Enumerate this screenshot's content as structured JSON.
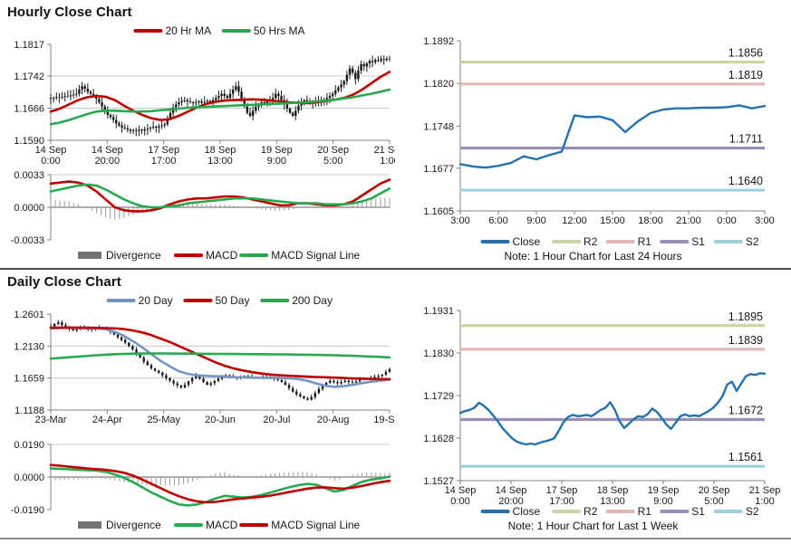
{
  "sections": [
    {
      "title": "Hourly Close Chart",
      "note": "Note: 1 Hour Chart for Last 24 Hours"
    },
    {
      "title": "Daily Close Chart",
      "note": "Note: 1 Hour Chart for Last 1 Week"
    }
  ],
  "colors": {
    "dark_red": "#c00000",
    "green": "#28a94f",
    "steel_blue": "#7494c4",
    "close_blue": "#2471b0",
    "r2_olive": "#c6d69e",
    "r1_pink": "#e2b7b5",
    "s1_purple": "#9c8db8",
    "s2_lightblue": "#9ccedc",
    "divergence_gray": "#8c8c8c",
    "candle_black": "#1a1a1a",
    "axis_gray": "#808080",
    "grid_gray": "#c8c8c8"
  },
  "chart_data": [
    {
      "id": "hourly_price",
      "type": "candlestick",
      "ylim": [
        1.159,
        1.1817
      ],
      "yticks": [
        1.1817,
        1.1742,
        1.1666,
        1.159
      ],
      "ytick_labels": [
        "1.1817",
        "1.1742",
        "1.1666",
        "1.1590"
      ],
      "xticks": [
        [
          "14 Sep",
          "0:00"
        ],
        [
          "14 Sep",
          "20:00"
        ],
        [
          "17 Sep",
          "17:00"
        ],
        [
          "18 Sep",
          "13:00"
        ],
        [
          "19 Sep",
          "9:00"
        ],
        [
          "20 Sep",
          "5:00"
        ],
        [
          "21 Sep",
          "1:00"
        ]
      ],
      "wick": 0.0011,
      "closes": [
        1.1688,
        1.169,
        1.1692,
        1.1691,
        1.1693,
        1.1695,
        1.1694,
        1.1696,
        1.1698,
        1.17,
        1.171,
        1.1718,
        1.1712,
        1.1705,
        1.17,
        1.1695,
        1.1688,
        1.168,
        1.167,
        1.166,
        1.165,
        1.1645,
        1.1638,
        1.163,
        1.1625,
        1.162,
        1.1618,
        1.1615,
        1.1612,
        1.1614,
        1.1612,
        1.1615,
        1.1613,
        1.1616,
        1.1618,
        1.162,
        1.1622,
        1.162,
        1.1623,
        1.1625,
        1.1628,
        1.164,
        1.1655,
        1.1668,
        1.1675,
        1.168,
        1.1683,
        1.1685,
        1.1682,
        1.168,
        1.1678,
        1.168,
        1.1682,
        1.1679,
        1.1681,
        1.1683,
        1.168,
        1.1685,
        1.169,
        1.1695,
        1.17,
        1.1695,
        1.169,
        1.17,
        1.171,
        1.1718,
        1.1705,
        1.1688,
        1.167,
        1.1655,
        1.1648,
        1.166,
        1.167,
        1.1675,
        1.168,
        1.1678,
        1.1682,
        1.1685,
        1.169,
        1.17,
        1.1695,
        1.1685,
        1.1675,
        1.1665,
        1.1655,
        1.1648,
        1.166,
        1.1672,
        1.168,
        1.1685,
        1.1682,
        1.168,
        1.1678,
        1.1682,
        1.168,
        1.1684,
        1.1686,
        1.169,
        1.1695,
        1.17,
        1.1708,
        1.1715,
        1.1722,
        1.173,
        1.1745,
        1.176,
        1.175,
        1.1735,
        1.1755,
        1.177,
        1.1765,
        1.1772,
        1.1778,
        1.1775,
        1.178,
        1.1778,
        1.1782,
        1.178,
        1.1783,
        1.1782
      ],
      "series": [
        {
          "name": "20 Hr MA",
          "color": "#c00000",
          "values": [
            1.1658,
            1.1665,
            1.1675,
            1.1685,
            1.1692,
            1.1695,
            1.1693,
            1.1685,
            1.1672,
            1.166,
            1.165,
            1.1642,
            1.1638,
            1.164,
            1.1648,
            1.1658,
            1.1668,
            1.1676,
            1.1681,
            1.1684,
            1.1685,
            1.1686,
            1.1687,
            1.1686,
            1.1684,
            1.1682,
            1.168,
            1.1679,
            1.1678,
            1.168,
            1.1683,
            1.1686,
            1.169,
            1.1698,
            1.171,
            1.1725,
            1.174,
            1.1752
          ]
        },
        {
          "name": "50 Hrs MA",
          "color": "#28a94f",
          "values": [
            1.1628,
            1.1632,
            1.1638,
            1.1645,
            1.1652,
            1.1658,
            1.166,
            1.166,
            1.1659,
            1.1658,
            1.1658,
            1.1659,
            1.1661,
            1.1663,
            1.1665,
            1.1667,
            1.1668,
            1.1669,
            1.167,
            1.1671,
            1.1672,
            1.1673,
            1.1674,
            1.1675,
            1.1676,
            1.1677,
            1.1678,
            1.1679,
            1.168,
            1.1682,
            1.1684,
            1.1686,
            1.1689,
            1.1692,
            1.1696,
            1.17,
            1.1705,
            1.171
          ]
        }
      ],
      "legend_pos": "top"
    },
    {
      "id": "hourly_macd",
      "type": "macd",
      "ylim": [
        -0.0033,
        0.0033
      ],
      "yticks": [
        0.0033,
        0.0,
        -0.0033
      ],
      "ytick_labels": [
        "0.0033",
        "0.0000",
        "-0.0033"
      ],
      "divergence_label": "Divergence",
      "divergence": [
        0.0008,
        0.0007,
        0.0006,
        0.0003,
        -0.0001,
        -0.0006,
        -0.001,
        -0.0013,
        -0.0011,
        -0.0008,
        -0.0005,
        -0.0003,
        -0.0001,
        0.0002,
        0.0004,
        0.0004,
        0.0004,
        0.0003,
        0.0003,
        0.0003,
        0.0002,
        0.0001,
        -0.0001,
        -0.0002,
        -0.0003,
        -0.0004,
        -0.0003,
        0.0,
        0.0,
        -0.0001,
        -0.0001,
        -0.0001,
        0.0,
        0.0002,
        0.0006,
        0.0009,
        0.001,
        0.0009
      ],
      "series": [
        {
          "name": "MACD",
          "color": "#c00000",
          "values": [
            0.0024,
            0.0025,
            0.0026,
            0.0025,
            0.0022,
            0.0016,
            0.0008,
            0.0,
            -0.0003,
            -0.0004,
            -0.0004,
            -0.0003,
            -0.0001,
            0.0003,
            0.0006,
            0.0008,
            0.0009,
            0.0009,
            0.001,
            0.0011,
            0.0011,
            0.001,
            0.0008,
            0.0006,
            0.0004,
            0.0002,
            0.0002,
            0.0004,
            0.0004,
            0.0003,
            0.0002,
            0.0002,
            0.0003,
            0.0006,
            0.0012,
            0.0018,
            0.0024,
            0.0028
          ]
        },
        {
          "name": "MACD Signal Line",
          "color": "#28a94f",
          "values": [
            0.0016,
            0.0018,
            0.002,
            0.0022,
            0.0023,
            0.0022,
            0.0018,
            0.0013,
            0.0008,
            0.0004,
            0.0001,
            0.0,
            0.0,
            0.0001,
            0.0002,
            0.0004,
            0.0005,
            0.0006,
            0.0007,
            0.0008,
            0.0009,
            0.0009,
            0.0009,
            0.0008,
            0.0007,
            0.0006,
            0.0005,
            0.0004,
            0.0004,
            0.0004,
            0.0003,
            0.0003,
            0.0003,
            0.0004,
            0.0006,
            0.0009,
            0.0014,
            0.0019
          ]
        }
      ]
    },
    {
      "id": "hourly_pivot",
      "type": "pivot_line",
      "ylim": [
        1.1605,
        1.1892
      ],
      "yticks": [
        1.1892,
        1.182,
        1.1748,
        1.1677,
        1.1605
      ],
      "ytick_labels": [
        "1.1892",
        "1.1820",
        "1.1748",
        "1.1677",
        "1.1605"
      ],
      "xticks": [
        "3:00",
        "6:00",
        "9:00",
        "12:00",
        "15:00",
        "18:00",
        "21:00",
        "0:00",
        "3:00"
      ],
      "close_label": "Close",
      "close_color": "#2471b0",
      "close": [
        1.1684,
        1.168,
        1.1678,
        1.1681,
        1.1686,
        1.1697,
        1.1692,
        1.1699,
        1.1705,
        1.1766,
        1.1763,
        1.1764,
        1.1758,
        1.1738,
        1.1756,
        1.177,
        1.1776,
        1.1778,
        1.1778,
        1.1779,
        1.1779,
        1.178,
        1.1783,
        1.1778,
        1.1782
      ],
      "levels": [
        {
          "name": "R2",
          "value": 1.1856,
          "color": "#c6d69e"
        },
        {
          "name": "R1",
          "value": 1.1819,
          "color": "#e2b7b5"
        },
        {
          "name": "S1",
          "value": 1.1711,
          "color": "#9c8db8"
        },
        {
          "name": "S2",
          "value": 1.164,
          "color": "#9ccedc"
        }
      ]
    },
    {
      "id": "daily_price",
      "type": "candlestick",
      "ylim": [
        1.1188,
        1.2601
      ],
      "yticks": [
        1.2601,
        1.213,
        1.1659,
        1.1188
      ],
      "ytick_labels": [
        "1.2601",
        "1.2130",
        "1.1659",
        "1.1188"
      ],
      "xticks": [
        "23-Mar",
        "24-Apr",
        "25-May",
        "20-Jun",
        "20-Jul",
        "20-Aug",
        "19-Sep"
      ],
      "wick": 0.0032,
      "closes": [
        1.242,
        1.2455,
        1.248,
        1.244,
        1.24,
        1.238,
        1.236,
        1.238,
        1.24,
        1.239,
        1.237,
        1.238,
        1.2395,
        1.24,
        1.2385,
        1.237,
        1.234,
        1.23,
        1.226,
        1.222,
        1.218,
        1.213,
        1.208,
        1.202,
        1.196,
        1.19,
        1.185,
        1.18,
        1.177,
        1.174,
        1.17,
        1.166,
        1.162,
        1.158,
        1.155,
        1.152,
        1.156,
        1.161,
        1.166,
        1.17,
        1.165,
        1.16,
        1.156,
        1.1585,
        1.1615,
        1.165,
        1.168,
        1.17,
        1.169,
        1.167,
        1.166,
        1.1675,
        1.169,
        1.168,
        1.167,
        1.1665,
        1.1672,
        1.168,
        1.167,
        1.166,
        1.165,
        1.163,
        1.16,
        1.156,
        1.151,
        1.146,
        1.142,
        1.139,
        1.136,
        1.134,
        1.138,
        1.144,
        1.15,
        1.155,
        1.159,
        1.162,
        1.16,
        1.158,
        1.16,
        1.162,
        1.16,
        1.159,
        1.161,
        1.1635,
        1.1655,
        1.1645,
        1.166,
        1.1675,
        1.169,
        1.171,
        1.175,
        1.179
      ],
      "series": [
        {
          "name": "20 Day",
          "color": "#7494c4",
          "values": [
            1.239,
            1.2395,
            1.2398,
            1.2395,
            1.239,
            1.2388,
            1.238,
            1.234,
            1.228,
            1.22,
            1.211,
            1.201,
            1.191,
            1.183,
            1.176,
            1.172,
            1.17,
            1.169,
            1.1685,
            1.168,
            1.1672,
            1.1668,
            1.1665,
            1.1663,
            1.1662,
            1.166,
            1.1655,
            1.1645,
            1.162,
            1.158,
            1.1545,
            1.153,
            1.154,
            1.156,
            1.1585,
            1.1605,
            1.162,
            1.1638
          ]
        },
        {
          "name": "50 Day",
          "color": "#c00000",
          "values": [
            1.24,
            1.2402,
            1.2403,
            1.2402,
            1.24,
            1.2398,
            1.2395,
            1.239,
            1.238,
            1.236,
            1.233,
            1.229,
            1.224,
            1.219,
            1.213,
            1.207,
            1.201,
            1.195,
            1.189,
            1.184,
            1.18,
            1.177,
            1.1745,
            1.1725,
            1.171,
            1.17,
            1.1692,
            1.1686,
            1.168,
            1.1675,
            1.167,
            1.1665,
            1.166,
            1.1655,
            1.165,
            1.1645,
            1.1642,
            1.164
          ]
        },
        {
          "name": "200 Day",
          "color": "#28a94f",
          "values": [
            1.1945,
            1.1955,
            1.1965,
            1.1975,
            1.1985,
            1.1995,
            1.2003,
            1.201,
            1.2015,
            1.2018,
            1.202,
            1.2021,
            1.2021,
            1.202,
            1.2019,
            1.2018,
            1.2017,
            1.2016,
            1.2015,
            1.2014,
            1.2013,
            1.2012,
            1.2011,
            1.201,
            1.2009,
            1.2008,
            1.2006,
            1.2004,
            1.2002,
            1.2,
            1.1997,
            1.1994,
            1.199,
            1.1986,
            1.1981,
            1.1976,
            1.197,
            1.1963
          ]
        }
      ],
      "legend_pos": "top"
    },
    {
      "id": "daily_macd",
      "type": "macd",
      "ylim": [
        -0.019,
        0.019
      ],
      "yticks": [
        0.019,
        0.0,
        -0.019
      ],
      "ytick_labels": [
        "0.0190",
        "0.0000",
        "-0.0190"
      ],
      "divergence_label": "Divergence",
      "divergence": [
        -0.002,
        -0.0018,
        -0.0015,
        -0.0013,
        -0.001,
        -0.0008,
        -0.0012,
        -0.002,
        -0.003,
        -0.0038,
        -0.0045,
        -0.005,
        -0.005,
        -0.005,
        -0.0048,
        -0.0035,
        -0.0018,
        0.0003,
        0.002,
        0.0028,
        0.0015,
        0.0005,
        0.0005,
        0.001,
        0.0018,
        0.0023,
        0.0028,
        0.003,
        0.0028,
        0.0017,
        -0.0005,
        -0.002,
        -0.0007,
        0.0012,
        0.0024,
        0.0025,
        0.0022,
        0.0024
      ],
      "series": [
        {
          "name": "MACD",
          "color": "#28a94f",
          "values": [
            0.005,
            0.0048,
            0.0045,
            0.0042,
            0.004,
            0.0038,
            0.003,
            0.0015,
            -0.0005,
            -0.003,
            -0.006,
            -0.009,
            -0.0115,
            -0.014,
            -0.016,
            -0.0165,
            -0.016,
            -0.0145,
            -0.0125,
            -0.011,
            -0.0115,
            -0.012,
            -0.0115,
            -0.0105,
            -0.009,
            -0.0075,
            -0.006,
            -0.0048,
            -0.004,
            -0.0045,
            -0.0065,
            -0.0085,
            -0.0075,
            -0.005,
            -0.0028,
            -0.0015,
            -0.0008,
            0.0002
          ]
        },
        {
          "name": "MACD Signal Line",
          "color": "#c00000",
          "values": [
            0.007,
            0.0066,
            0.006,
            0.0055,
            0.005,
            0.0046,
            0.0042,
            0.0035,
            0.0025,
            0.0008,
            -0.0015,
            -0.004,
            -0.0065,
            -0.009,
            -0.0112,
            -0.013,
            -0.0142,
            -0.0148,
            -0.0145,
            -0.0138,
            -0.013,
            -0.0125,
            -0.012,
            -0.0115,
            -0.0108,
            -0.0098,
            -0.0088,
            -0.0078,
            -0.0068,
            -0.0062,
            -0.006,
            -0.0065,
            -0.0068,
            -0.0062,
            -0.0052,
            -0.004,
            -0.003,
            -0.0022
          ]
        }
      ]
    },
    {
      "id": "weekly_pivot",
      "type": "pivot_line",
      "ylim": [
        1.1527,
        1.1931
      ],
      "yticks": [
        1.1931,
        1.183,
        1.1729,
        1.1628,
        1.1527
      ],
      "ytick_labels": [
        "1.1931",
        "1.1830",
        "1.1729",
        "1.1628",
        "1.1527"
      ],
      "xticks": [
        [
          "14 Sep",
          "0:00"
        ],
        [
          "14 Sep",
          "20:00"
        ],
        [
          "17 Sep",
          "17:00"
        ],
        [
          "18 Sep",
          "13:00"
        ],
        [
          "19 Sep",
          "9:00"
        ],
        [
          "20 Sep",
          "5:00"
        ],
        [
          "21 Sep",
          "1:00"
        ]
      ],
      "close_label": "Close",
      "close_color": "#2471b0",
      "close": [
        1.1688,
        1.1692,
        1.1695,
        1.17,
        1.1712,
        1.1705,
        1.1695,
        1.1682,
        1.1668,
        1.1652,
        1.164,
        1.1628,
        1.162,
        1.1616,
        1.1613,
        1.1615,
        1.1613,
        1.1617,
        1.162,
        1.1623,
        1.1627,
        1.1645,
        1.1665,
        1.1678,
        1.1683,
        1.168,
        1.1681,
        1.1683,
        1.168,
        1.1687,
        1.1695,
        1.17,
        1.1713,
        1.1695,
        1.1668,
        1.1652,
        1.1662,
        1.1673,
        1.168,
        1.1678,
        1.1685,
        1.1698,
        1.169,
        1.1676,
        1.166,
        1.165,
        1.1665,
        1.168,
        1.1684,
        1.168,
        1.1682,
        1.168,
        1.1686,
        1.1692,
        1.17,
        1.1712,
        1.1728,
        1.1755,
        1.1762,
        1.174,
        1.1758,
        1.1775,
        1.178,
        1.1778,
        1.1782,
        1.1781
      ],
      "levels": [
        {
          "name": "R2",
          "value": 1.1895,
          "color": "#c6d69e"
        },
        {
          "name": "R1",
          "value": 1.1839,
          "color": "#e2b7b5"
        },
        {
          "name": "S1",
          "value": 1.1672,
          "color": "#9c8db8"
        },
        {
          "name": "S2",
          "value": 1.1561,
          "color": "#9ccedc"
        }
      ]
    }
  ]
}
